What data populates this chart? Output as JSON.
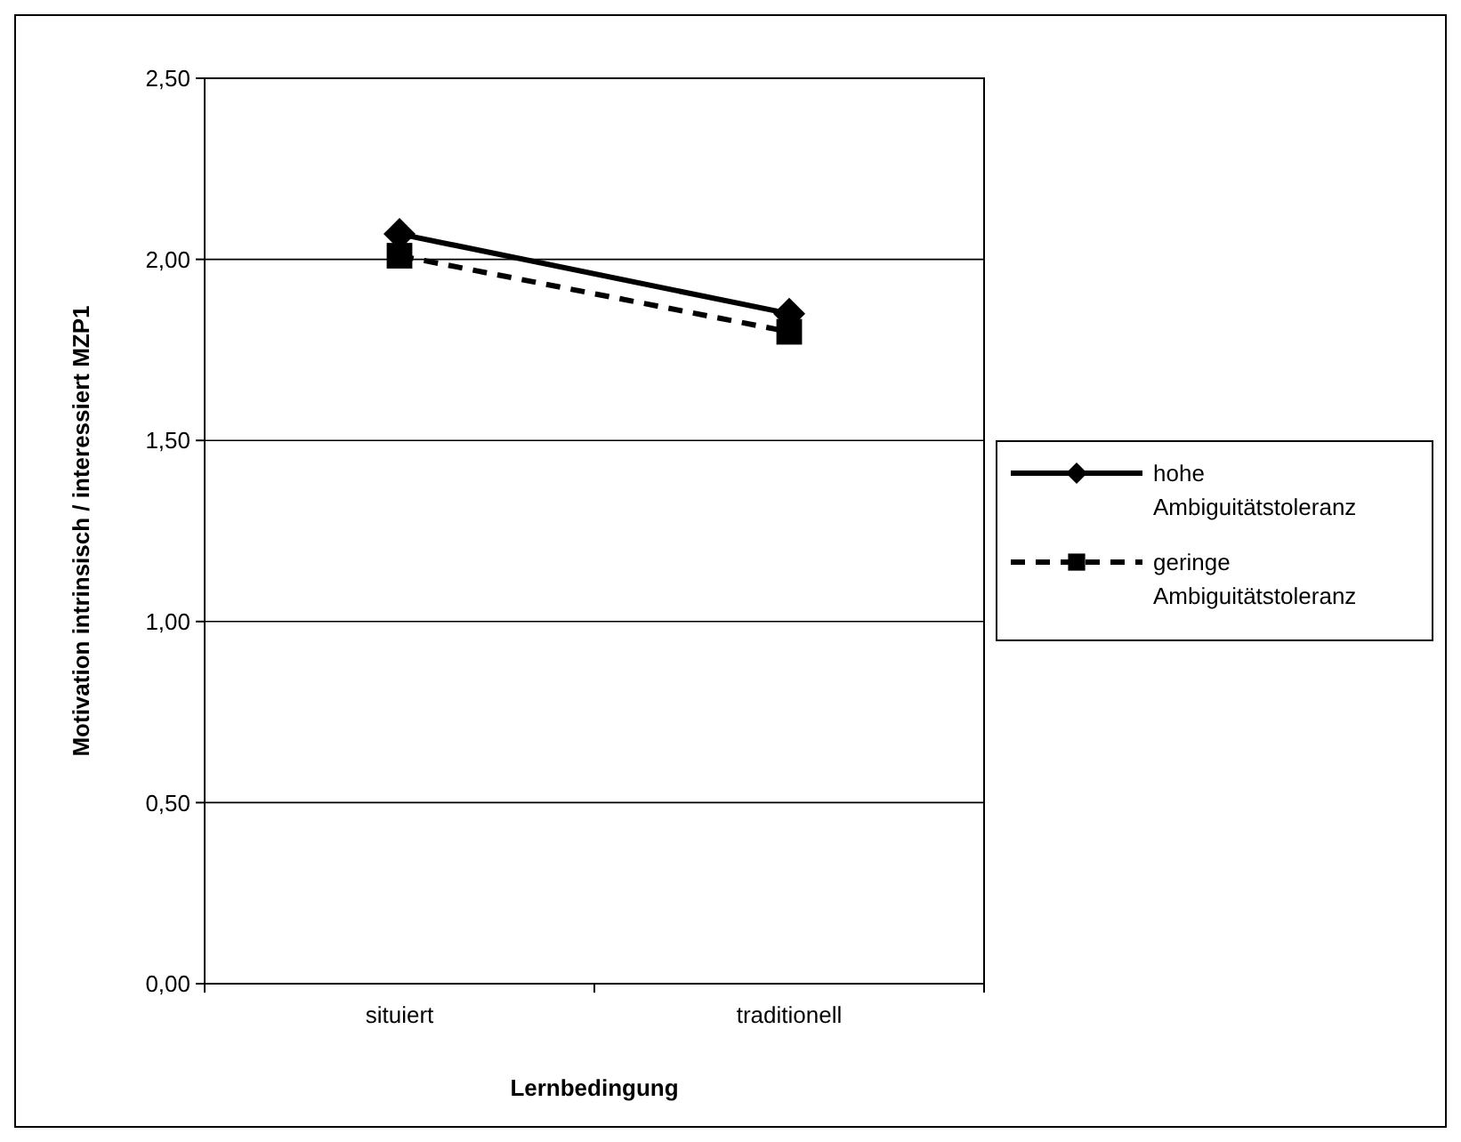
{
  "chart_data": {
    "type": "line",
    "xlabel": "Lernbedingung",
    "ylabel": "Motivation intrinsisch / interessiert MZP1",
    "categories": [
      "situiert",
      "traditionell"
    ],
    "series": [
      {
        "name": "hohe Ambiguitätstoleranz",
        "color": "#000000",
        "values": [
          2.07,
          1.85
        ],
        "marker": "diamond",
        "line_style": "solid"
      },
      {
        "name": "geringe Ambiguitätstoleranz",
        "color": "#000000",
        "values": [
          2.01,
          1.8
        ],
        "marker": "square",
        "line_style": "dashed"
      }
    ],
    "ylim": [
      0,
      2.5
    ],
    "yticks": [
      {
        "value": 0,
        "label": "0,00"
      },
      {
        "value": 0.5,
        "label": "0,50"
      },
      {
        "value": 1,
        "label": "1,00"
      },
      {
        "value": 1.5,
        "label": "1,50"
      },
      {
        "value": 2,
        "label": "2,00"
      },
      {
        "value": 2.5,
        "label": "2,50"
      }
    ],
    "grid": "y",
    "legend": "right"
  }
}
